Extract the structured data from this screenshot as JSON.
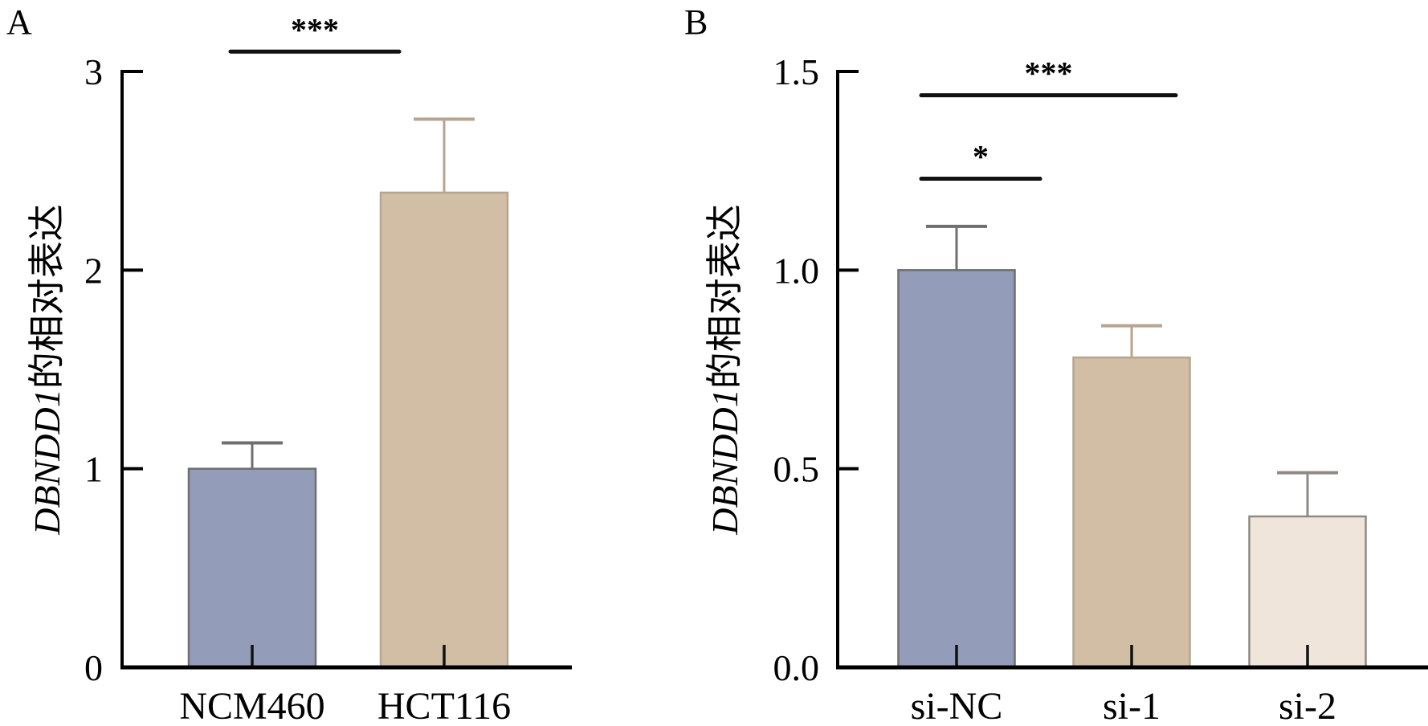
{
  "chart_data": [
    {
      "panel": "A",
      "type": "bar",
      "title": "",
      "xlabel": "",
      "ylabel_gene": "DBNDD1",
      "ylabel_suffix": "的相对表达",
      "ylim": [
        0,
        3
      ],
      "yticks": [
        0,
        1,
        2,
        3
      ],
      "ytick_labels": [
        "0",
        "1",
        "2",
        "3"
      ],
      "grid": false,
      "legend": "none",
      "categories": [
        "NCM460",
        "HCT116"
      ],
      "values": [
        1.0,
        2.39
      ],
      "error_upper": [
        0.13,
        0.37
      ],
      "colors": [
        "#939cb8",
        "#d2bea4"
      ],
      "error_colors": [
        "#6f6f6f",
        "#b7a593"
      ],
      "significance": [
        {
          "from": 0,
          "to": 1,
          "label": "***",
          "level": 3.1
        }
      ]
    },
    {
      "panel": "B",
      "type": "bar",
      "title": "",
      "xlabel": "",
      "ylabel_gene": "DBNDD1",
      "ylabel_suffix": "的相对表达",
      "ylim": [
        0,
        1.5
      ],
      "yticks": [
        0,
        0.5,
        1.0,
        1.5
      ],
      "ytick_labels": [
        "0.0",
        "0.5",
        "1.0",
        "1.5"
      ],
      "grid": false,
      "legend": "none",
      "categories": [
        "si-NC",
        "si-1",
        "si-2"
      ],
      "values": [
        1.0,
        0.78,
        0.38
      ],
      "error_upper": [
        0.11,
        0.08,
        0.11
      ],
      "colors": [
        "#939cb8",
        "#d2bea4",
        "#efe5da"
      ],
      "error_colors": [
        "#6f6f6f",
        "#b7a593",
        "#8f8a85"
      ],
      "significance": [
        {
          "from": 0,
          "to": 2,
          "label": "***",
          "level": 1.44
        },
        {
          "from": 0,
          "to": 1,
          "label": "*",
          "level": 1.23
        }
      ]
    }
  ]
}
